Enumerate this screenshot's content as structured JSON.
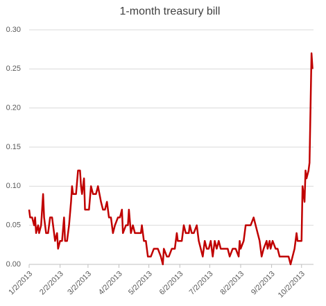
{
  "chart_data": {
    "type": "line",
    "title": "1-month treasury bill",
    "color": "#c00000",
    "grid": true,
    "x": [
      "1/2/2013",
      "1/3/2013",
      "1/5/2013",
      "1/7/2013",
      "1/8/2013",
      "1/9/2013",
      "1/11/2013",
      "1/12/2013",
      "1/14/2013",
      "1/16/2013",
      "1/17/2013",
      "1/19/2013",
      "1/21/2013",
      "1/23/2013",
      "1/25/2013",
      "1/26/2013",
      "1/28/2013",
      "1/30/2013",
      "1/31/2013",
      "2/2/2013",
      "2/4/2013",
      "2/6/2013",
      "2/7/2013",
      "2/9/2013",
      "2/11/2013",
      "2/13/2013",
      "2/14/2013",
      "2/15/2013",
      "2/18/2013",
      "2/20/2013",
      "2/22/2013",
      "2/23/2013",
      "2/24/2013",
      "2/26/2013",
      "2/27/2013",
      "3/3/2013",
      "3/5/2013",
      "3/7/2013",
      "3/10/2013",
      "3/12/2013",
      "3/15/2013",
      "3/17/2013",
      "3/19/2013",
      "3/21/2013",
      "3/23/2013",
      "3/25/2013",
      "3/27/2013",
      "3/29/2013",
      "4/1/2013",
      "4/3/2013",
      "4/5/2013",
      "4/6/2013",
      "4/9/2013",
      "4/11/2013",
      "4/12/2013",
      "4/14/2013",
      "4/16/2013",
      "4/18/2013",
      "4/20/2013",
      "4/24/2013",
      "4/25/2013",
      "4/27/2013",
      "4/29/2013",
      "5/1/2013",
      "5/4/2013",
      "5/7/2013",
      "5/11/2013",
      "5/14/2013",
      "5/16/2013",
      "5/17/2013",
      "5/20/2013",
      "5/22/2013",
      "5/25/2013",
      "5/28/2013",
      "5/30/2013",
      "5/31/2013",
      "6/2/2013",
      "6/4/2013",
      "6/6/2013",
      "6/8/2013",
      "6/11/2013",
      "6/12/2013",
      "6/14/2013",
      "6/16/2013",
      "6/19/2013",
      "6/21/2013",
      "6/23/2013",
      "6/25/2013",
      "6/27/2013",
      "6/29/2013",
      "7/1/2013",
      "7/3/2013",
      "7/5/2013",
      "7/7/2013",
      "7/9/2013",
      "7/11/2013",
      "7/13/2013",
      "7/15/2013",
      "7/20/2013",
      "7/22/2013",
      "7/25/2013",
      "7/28/2013",
      "7/31/2013",
      "8/1/2013",
      "8/2/2013",
      "8/5/2013",
      "8/7/2013",
      "8/9/2013",
      "8/12/2013",
      "8/15/2013",
      "8/17/2013",
      "8/19/2013",
      "8/21/2013",
      "8/23/2013",
      "8/25/2013",
      "8/28/2013",
      "8/29/2013",
      "8/31/2013",
      "9/1/2013",
      "9/3/2013",
      "9/6/2013",
      "9/8/2013",
      "9/10/2013",
      "9/15/2013",
      "9/19/2013",
      "9/21/2013",
      "9/23/2013",
      "9/25/2013",
      "9/27/2013",
      "9/28/2013",
      "10/2/2013",
      "10/3/2013",
      "10/5/2013",
      "10/6/2013",
      "10/7/2013",
      "10/9/2013",
      "10/10/2013",
      "10/12/2013",
      "10/13/2013"
    ],
    "values": [
      0.07,
      0.06,
      0.06,
      0.05,
      0.06,
      0.04,
      0.05,
      0.04,
      0.05,
      0.09,
      0.06,
      0.04,
      0.04,
      0.06,
      0.06,
      0.05,
      0.03,
      0.04,
      0.02,
      0.03,
      0.03,
      0.06,
      0.03,
      0.03,
      0.05,
      0.08,
      0.1,
      0.09,
      0.09,
      0.12,
      0.12,
      0.1,
      0.09,
      0.11,
      0.07,
      0.07,
      0.1,
      0.09,
      0.09,
      0.1,
      0.08,
      0.07,
      0.07,
      0.08,
      0.06,
      0.06,
      0.04,
      0.05,
      0.06,
      0.06,
      0.07,
      0.04,
      0.05,
      0.05,
      0.07,
      0.04,
      0.05,
      0.04,
      0.04,
      0.04,
      0.05,
      0.03,
      0.03,
      0.01,
      0.01,
      0.02,
      0.02,
      0.01,
      0.0,
      0.02,
      0.01,
      0.01,
      0.02,
      0.02,
      0.04,
      0.03,
      0.03,
      0.03,
      0.05,
      0.04,
      0.04,
      0.05,
      0.04,
      0.04,
      0.05,
      0.03,
      0.02,
      0.01,
      0.03,
      0.02,
      0.02,
      0.03,
      0.01,
      0.03,
      0.02,
      0.03,
      0.02,
      0.02,
      0.02,
      0.01,
      0.02,
      0.02,
      0.01,
      0.03,
      0.02,
      0.03,
      0.05,
      0.05,
      0.05,
      0.06,
      0.05,
      0.04,
      0.03,
      0.01,
      0.02,
      0.03,
      0.02,
      0.03,
      0.02,
      0.03,
      0.02,
      0.02,
      0.01,
      0.01,
      0.01,
      0.0,
      0.01,
      0.02,
      0.04,
      0.03,
      0.03,
      0.1,
      0.08,
      0.12,
      0.11,
      0.12,
      0.13,
      0.27,
      0.25
    ],
    "xlim": [
      "1/2/2013",
      "10/14/2013"
    ],
    "xticks": [
      "1/2/2013",
      "2/2/2013",
      "3/2/2013",
      "4/2/2013",
      "5/2/2013",
      "6/2/2013",
      "7/2/2013",
      "8/2/2013",
      "9/2/2013",
      "10/2/2013"
    ],
    "ylim": [
      0,
      0.3
    ],
    "yticks": [
      {
        "value": 0,
        "label": "0.00"
      },
      {
        "value": 0.05,
        "label": "0.05"
      },
      {
        "value": 0.1,
        "label": "0.10"
      },
      {
        "value": 0.15,
        "label": "0.15"
      },
      {
        "value": 0.2,
        "label": "0.20"
      },
      {
        "value": 0.25,
        "label": "0.25"
      },
      {
        "value": 0.3,
        "label": "0.30"
      }
    ]
  }
}
